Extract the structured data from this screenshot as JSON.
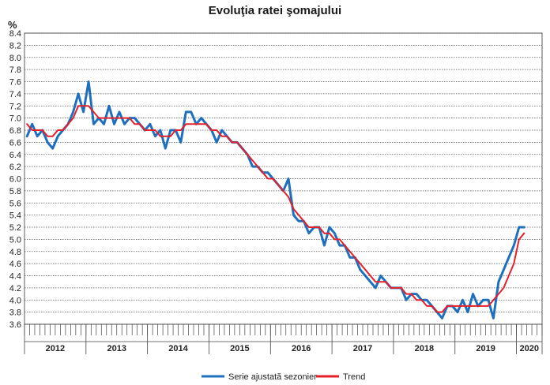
{
  "chart_data": {
    "type": "line",
    "title": "Evoluţia ratei şomajului",
    "ylabel": "%",
    "xlabel": "",
    "ylim": [
      3.6,
      8.4
    ],
    "yticks": [
      "3.6",
      "3.8",
      "4.0",
      "4.2",
      "4.4",
      "4.6",
      "4.8",
      "5.0",
      "5.2",
      "5.4",
      "5.6",
      "5.8",
      "6.0",
      "6.2",
      "6.4",
      "6.6",
      "6.8",
      "7.0",
      "7.2",
      "7.4",
      "7.6",
      "7.8",
      "8.0",
      "8.2",
      "8.4"
    ],
    "years": [
      "2012",
      "2013",
      "2014",
      "2015",
      "2016",
      "2017",
      "2018",
      "2019",
      "2020"
    ],
    "month_ticks": "monthly",
    "grid": "horizontal dotted",
    "legend_position": "bottom",
    "series": [
      {
        "name": "Serie ajustată sezonier",
        "color": "#1f6fbf",
        "x_start": "2012-01",
        "values": [
          6.7,
          6.9,
          6.7,
          6.8,
          6.6,
          6.5,
          6.7,
          6.8,
          6.9,
          7.1,
          7.4,
          7.1,
          7.6,
          6.9,
          7.0,
          6.9,
          7.2,
          6.9,
          7.1,
          6.9,
          7.0,
          7.0,
          6.9,
          6.8,
          6.9,
          6.7,
          6.8,
          6.5,
          6.8,
          6.8,
          6.6,
          7.1,
          7.1,
          6.9,
          7.0,
          6.9,
          6.8,
          6.6,
          6.8,
          6.7,
          6.6,
          6.6,
          6.5,
          6.4,
          6.2,
          6.2,
          6.1,
          6.1,
          6.0,
          5.9,
          5.8,
          6.0,
          5.4,
          5.3,
          5.3,
          5.1,
          5.2,
          5.2,
          4.9,
          5.2,
          5.1,
          4.9,
          4.9,
          4.7,
          4.7,
          4.5,
          4.4,
          4.3,
          4.2,
          4.4,
          4.3,
          4.2,
          4.2,
          4.2,
          4.0,
          4.1,
          4.1,
          4.0,
          4.0,
          3.9,
          3.8,
          3.7,
          3.9,
          3.9,
          3.8,
          4.0,
          3.8,
          4.1,
          3.9,
          4.0,
          4.0,
          3.7,
          4.3,
          4.5,
          4.7,
          4.9,
          5.2,
          5.2
        ],
        "linewidth": 3
      },
      {
        "name": "Trend",
        "color": "#e4202a",
        "x_start": "2012-01",
        "values": [
          6.9,
          6.8,
          6.8,
          6.8,
          6.7,
          6.7,
          6.8,
          6.8,
          6.9,
          7.0,
          7.2,
          7.2,
          7.2,
          7.1,
          7.0,
          7.0,
          7.0,
          7.0,
          7.0,
          7.0,
          7.0,
          6.9,
          6.9,
          6.8,
          6.8,
          6.8,
          6.7,
          6.7,
          6.7,
          6.8,
          6.8,
          6.9,
          6.9,
          6.9,
          6.9,
          6.9,
          6.8,
          6.8,
          6.7,
          6.7,
          6.6,
          6.6,
          6.5,
          6.4,
          6.3,
          6.2,
          6.1,
          6.0,
          6.0,
          5.9,
          5.8,
          5.7,
          5.5,
          5.4,
          5.3,
          5.2,
          5.2,
          5.2,
          5.1,
          5.1,
          5.0,
          5.0,
          4.9,
          4.8,
          4.7,
          4.6,
          4.5,
          4.4,
          4.3,
          4.3,
          4.3,
          4.2,
          4.2,
          4.2,
          4.1,
          4.1,
          4.0,
          4.0,
          3.9,
          3.9,
          3.8,
          3.8,
          3.9,
          3.9,
          3.9,
          3.9,
          3.9,
          3.9,
          3.9,
          3.9,
          3.9,
          4.0,
          4.1,
          4.2,
          4.4,
          4.6,
          5.0,
          5.1
        ],
        "linewidth": 2
      }
    ]
  }
}
